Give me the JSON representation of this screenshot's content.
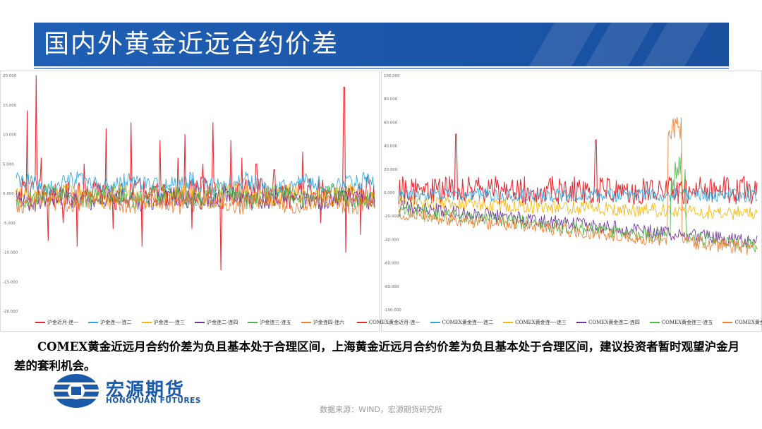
{
  "page": {
    "title": "国内外黄金近远合约价差",
    "comment": "COMEX黄金近远月合约价差为负且基本处于合理区间，上海黄金近远月合约价差为负且基本处于合理区间，建议投资者暂时观望沪金月差的套利机会。",
    "source": "数据来源：WIND，宏源期货研究所",
    "logo": {
      "cn": "宏源期货",
      "en": "HONGYUAN FUTURES",
      "icon": "hongyuan-logo-icon"
    }
  },
  "colors": {
    "title_bar": "#1f5fb4",
    "series": [
      "#e6262b",
      "#2aa7e0",
      "#f5b60c",
      "#7030a0",
      "#4db848",
      "#ed7d31"
    ]
  },
  "chart_data": [
    {
      "type": "line",
      "ylim": [
        -20,
        20
      ],
      "yticks": [
        "20.000",
        "15.000",
        "10.000",
        "5.000",
        "0.000",
        "-5.000",
        "-10.000",
        "-15.000",
        "-20.000"
      ],
      "grid": false,
      "legend": "bottom",
      "series": [
        {
          "name": "沪金近月-连一",
          "baseline": 0,
          "spikes": [
            [
              0.03,
              14
            ],
            [
              0.055,
              20
            ],
            [
              0.07,
              6
            ],
            [
              0.09,
              -8
            ],
            [
              0.13,
              -5
            ],
            [
              0.17,
              -9
            ],
            [
              0.19,
              5
            ],
            [
              0.25,
              11
            ],
            [
              0.27,
              -6
            ],
            [
              0.32,
              12
            ],
            [
              0.35,
              -9
            ],
            [
              0.4,
              9
            ],
            [
              0.45,
              6
            ],
            [
              0.47,
              10
            ],
            [
              0.49,
              -6
            ],
            [
              0.52,
              5
            ],
            [
              0.55,
              12
            ],
            [
              0.57,
              -13
            ],
            [
              0.6,
              9
            ],
            [
              0.63,
              6
            ],
            [
              0.67,
              5
            ],
            [
              0.72,
              4
            ],
            [
              0.8,
              7
            ],
            [
              0.85,
              -5
            ],
            [
              0.915,
              18
            ],
            [
              0.92,
              -10
            ],
            [
              0.96,
              -7
            ],
            [
              0.98,
              3
            ]
          ]
        },
        {
          "name": "沪金连一-连二",
          "baseline": 1.5
        },
        {
          "name": "沪金连一-连三",
          "baseline": -0.5
        },
        {
          "name": "沪金连二-连四",
          "baseline": -1
        },
        {
          "name": "沪金连三-连五",
          "baseline": -0.5
        },
        {
          "name": "沪金连四-连六",
          "baseline": -1.5
        }
      ]
    },
    {
      "type": "line",
      "ylim": [
        -100,
        100
      ],
      "yticks": [
        "100.000",
        "80.000",
        "60.000",
        "40.000",
        "20.000",
        "0.000",
        "-20.000",
        "-40.000",
        "-60.000",
        "-80.000",
        "-100.000"
      ],
      "grid": false,
      "legend": "bottom",
      "series": [
        {
          "name": "COMEX黄金近月-连一",
          "baseline": 2
        },
        {
          "name": "COMEX黄金连一-连二",
          "baseline": -2
        },
        {
          "name": "COMEX黄金连一-连三",
          "baseline": -8
        },
        {
          "name": "COMEX黄金连二-连四",
          "baseline": -12
        },
        {
          "name": "COMEX黄金连三-连五",
          "baseline": -15
        },
        {
          "name": "COMEX黄金连四-连六",
          "baseline": -18
        }
      ]
    }
  ]
}
